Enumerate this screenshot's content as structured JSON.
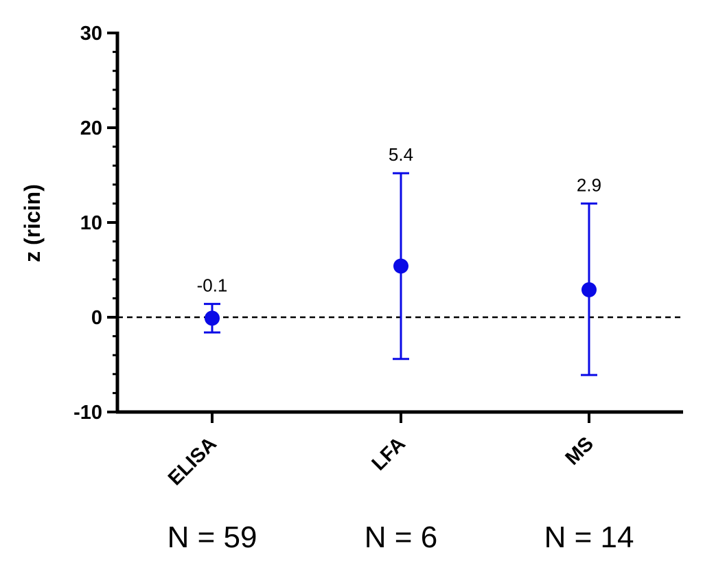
{
  "chart_data": {
    "type": "scatter",
    "ylabel": "z (ricin)",
    "xlabel": "",
    "ylim": [
      -10,
      30
    ],
    "yticks": [
      -10,
      0,
      10,
      20,
      30
    ],
    "categories": [
      "ELISA",
      "LFA",
      "MS"
    ],
    "series": [
      {
        "values": [
          -0.1,
          5.4,
          2.9
        ],
        "err_low": [
          -1.6,
          -4.4,
          -6.1
        ],
        "err_high": [
          1.4,
          15.2,
          12.0
        ],
        "labels": [
          "-0.1",
          "5.4",
          "2.9"
        ],
        "color": "#0a0ae6"
      }
    ],
    "reference_line": {
      "y": 0,
      "style": "dashed"
    },
    "n_labels": [
      "N = 59",
      "N = 6",
      "N = 14"
    ],
    "grid": false,
    "legend": "none"
  }
}
